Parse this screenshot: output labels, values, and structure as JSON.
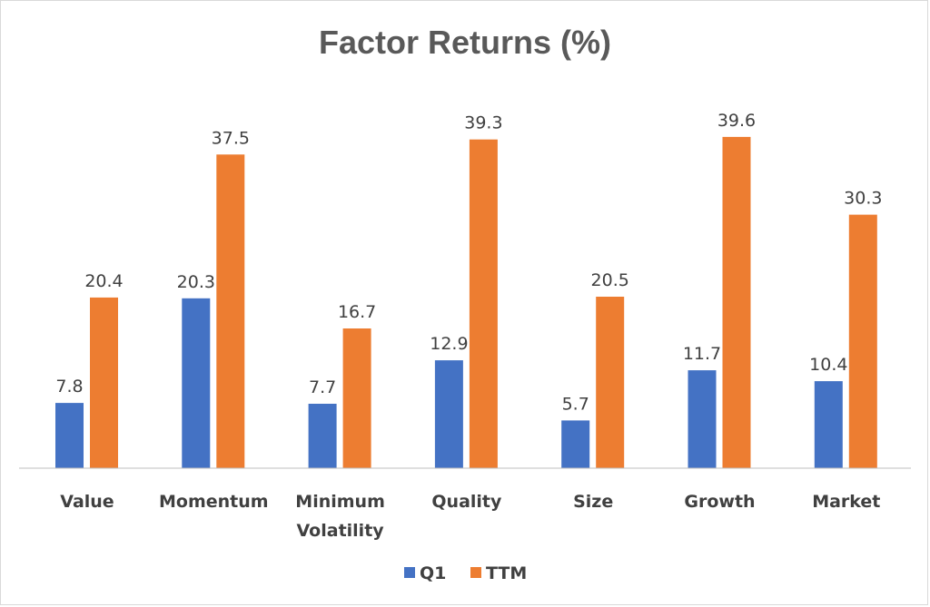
{
  "colors": {
    "q1": "#4472c4",
    "ttm": "#ed7d31",
    "axis": "#bfbfbf",
    "text": "#404040",
    "title": "#595959"
  },
  "chart_data": {
    "type": "bar",
    "title": "Factor Returns (%)",
    "categories": [
      [
        "Value"
      ],
      [
        "Momentum"
      ],
      [
        "Minimum",
        "Volatility"
      ],
      [
        "Quality"
      ],
      [
        "Size"
      ],
      [
        "Growth"
      ],
      [
        "Market"
      ]
    ],
    "series": [
      {
        "name": "Q1",
        "values": [
          7.8,
          20.3,
          7.7,
          12.9,
          5.7,
          11.7,
          10.4
        ]
      },
      {
        "name": "TTM",
        "values": [
          20.4,
          37.5,
          16.7,
          39.3,
          20.5,
          39.6,
          30.3
        ]
      }
    ],
    "ylim": [
      0,
      45
    ],
    "grid": false,
    "legend": "bottom",
    "data_labels": true
  }
}
